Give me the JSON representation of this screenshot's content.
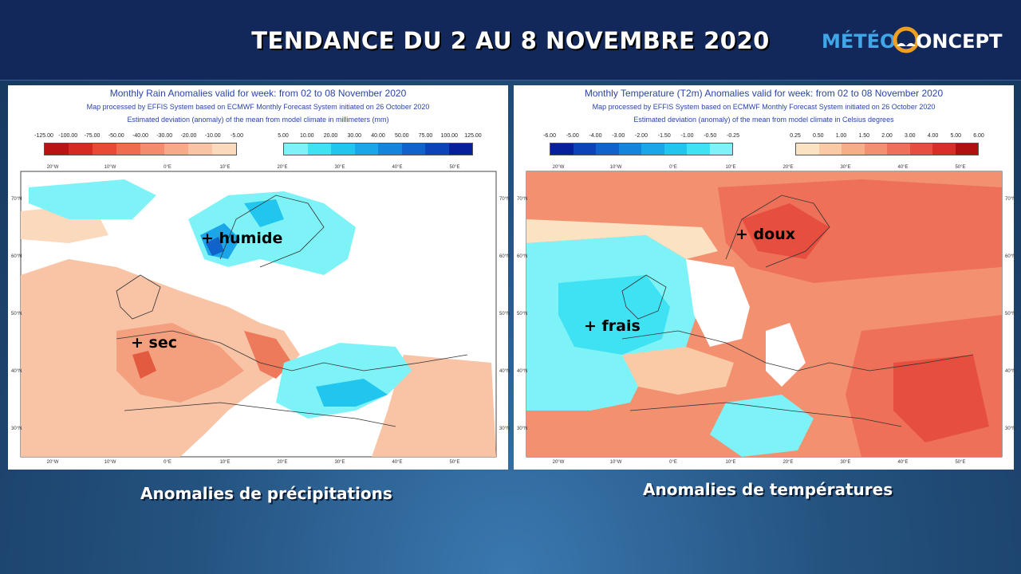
{
  "header": {
    "title": "TENDANCE DU 2 AU 8 NOVEMBRE 2020",
    "logo_text_left": "MÉTÉO",
    "logo_text_right": "ONCEPT"
  },
  "left_map": {
    "title": "Monthly Rain Anomalies valid for week: from 02 to 08 November 2020",
    "subtitle1": "Map processed by EFFIS System based on ECMWF Monthly Forecast System initiated on 26 October 2020",
    "subtitle2": "Estimated deviation (anomaly) of the mean from model climate in millimeters (mm)",
    "scale_neg": [
      "-125.00",
      "-100.00",
      "-75.00",
      "-50.00",
      "-40.00",
      "-30.00",
      "-20.00",
      "-10.00",
      "-5.00"
    ],
    "scale_pos": [
      "5.00",
      "10.00",
      "20.00",
      "30.00",
      "40.00",
      "50.00",
      "75.00",
      "100.00",
      "125.00"
    ],
    "colors_neg": [
      "#b81414",
      "#d42a1f",
      "#e84a35",
      "#f06c50",
      "#f48c6c",
      "#f7a98a",
      "#f9c3a6",
      "#fad9bd"
    ],
    "colors_pos": [
      "#7ef3f7",
      "#3fe2f2",
      "#21c6ee",
      "#1aa6e8",
      "#1584db",
      "#1163cc",
      "#0c43b8",
      "#061f9a"
    ],
    "label_wet": "+ humide",
    "label_dry": "+ sec",
    "lon_labels": [
      "20°W",
      "10°W",
      "0°E",
      "10°E",
      "20°E",
      "30°E",
      "40°E",
      "50°E"
    ],
    "lat_labels": [
      "70°N",
      "60°N",
      "50°N",
      "40°N",
      "30°N"
    ],
    "caption": "Anomalies de précipitations"
  },
  "right_map": {
    "title": "Monthly Temperature (T2m) Anomalies valid for week: from 02 to 08 November 2020",
    "subtitle1": "Map processed by EFFIS System based on ECMWF Monthly Forecast System initiated on 26 October 2020",
    "subtitle2": "Estimated deviation (anomaly) of the mean from model climate in Celsius degrees",
    "scale_neg": [
      "-6.00",
      "-5.00",
      "-4.00",
      "-3.00",
      "-2.00",
      "-1.50",
      "-1.00",
      "-0.50",
      "-0.25"
    ],
    "scale_pos": [
      "0.25",
      "0.50",
      "1.00",
      "1.50",
      "2.00",
      "3.00",
      "4.00",
      "5.00",
      "6.00"
    ],
    "colors_neg": [
      "#061f9a",
      "#0c43b8",
      "#1163cc",
      "#1584db",
      "#1aa6e8",
      "#21c6ee",
      "#3fe2f2",
      "#7ef3f7"
    ],
    "colors_pos": [
      "#fbe2c2",
      "#f9caa5",
      "#f6ae88",
      "#f39070",
      "#ee7058",
      "#e64f3f",
      "#d82e28",
      "#b01010"
    ],
    "label_warm": "+ doux",
    "label_cool": "+ frais",
    "lon_labels": [
      "20°W",
      "10°W",
      "0°E",
      "10°E",
      "20°E",
      "30°E",
      "40°E",
      "50°E"
    ],
    "lat_labels": [
      "70°N",
      "60°N",
      "50°N",
      "40°N",
      "30°N"
    ],
    "caption": "Anomalies de températures"
  },
  "colors": {
    "header_bg": "#13285a",
    "logo_blue": "#3fa6e8",
    "logo_orange": "#f0a020"
  }
}
